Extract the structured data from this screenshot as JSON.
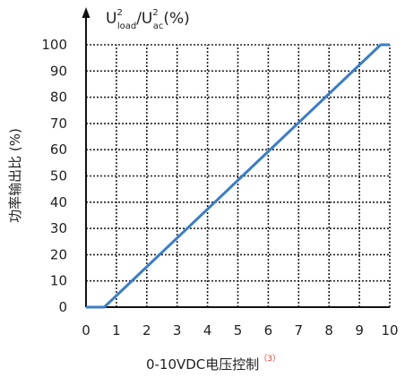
{
  "chart_data": {
    "type": "line",
    "ylabel_top": {
      "base1": "U",
      "sup1": "2",
      "sub1": "load",
      "slash": "/U",
      "sup2": "2",
      "sub2": "ac",
      "unit": "(%)"
    },
    "ylabel_side": "功率输出比 (%)",
    "xlabel": "0-10VDC电压控制",
    "xlabel_note": "（3）",
    "xlim": [
      0,
      10
    ],
    "ylim": [
      0,
      100
    ],
    "x_ticks": [
      "0",
      "1",
      "2",
      "3",
      "4",
      "5",
      "6",
      "7",
      "8",
      "9",
      "10"
    ],
    "y_ticks": [
      "0",
      "10",
      "20",
      "30",
      "40",
      "50",
      "60",
      "70",
      "80",
      "90",
      "100"
    ],
    "grid": true,
    "series": [
      {
        "color": "#3b7dc4",
        "x": [
          0,
          0.6,
          9.7,
          10
        ],
        "y": [
          0,
          0,
          100,
          100
        ]
      }
    ]
  }
}
